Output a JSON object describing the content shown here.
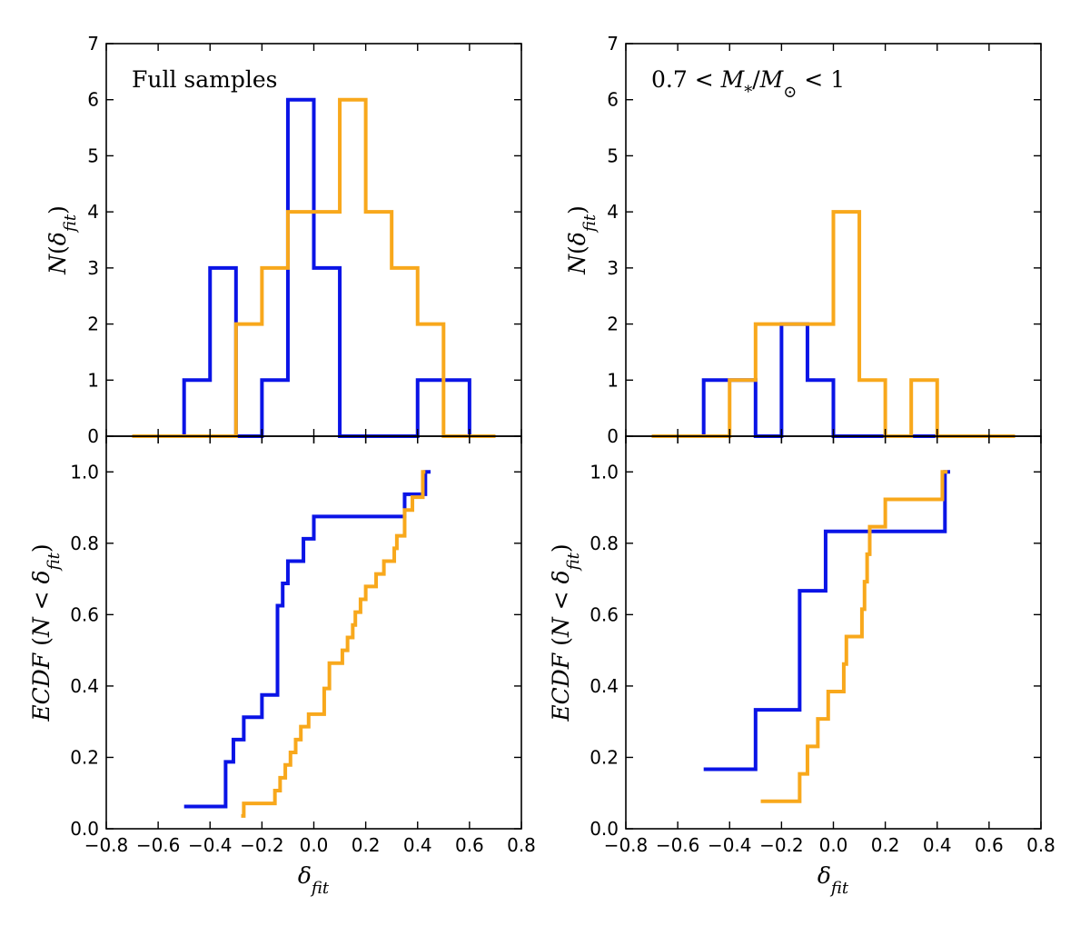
{
  "colors": {
    "blue": "#0a14e6",
    "orange": "#f8a81c",
    "axis": "#000000"
  },
  "chart_data": [
    {
      "id": "hist-full",
      "type": "histogram",
      "annotation": "Full samples",
      "ylabel": "N(δ_fit)",
      "xlim": [
        -0.8,
        0.8
      ],
      "ylim": [
        0,
        7
      ],
      "xticks": [
        -0.8,
        -0.6,
        -0.4,
        -0.2,
        0.0,
        0.2,
        0.4,
        0.6,
        0.8
      ],
      "yticks": [
        0,
        1,
        2,
        3,
        4,
        5,
        6,
        7
      ],
      "bin_edges": [
        -0.7,
        -0.6,
        -0.5,
        -0.4,
        -0.3,
        -0.2,
        -0.1,
        0.0,
        0.1,
        0.2,
        0.3,
        0.4,
        0.5,
        0.6,
        0.7
      ],
      "series": [
        {
          "name": "blue sample",
          "color_key": "blue",
          "counts": [
            0,
            0,
            1,
            3,
            0,
            1,
            6,
            3,
            0,
            0,
            0,
            1,
            1,
            0
          ]
        },
        {
          "name": "orange sample",
          "color_key": "orange",
          "counts": [
            0,
            0,
            0,
            0,
            2,
            3,
            4,
            4,
            6,
            4,
            3,
            2,
            0,
            0
          ]
        }
      ]
    },
    {
      "id": "hist-mass",
      "type": "histogram",
      "annotation": "0.7 < M_*/M_⊙ < 1",
      "ylabel": "N(δ_fit)",
      "xlim": [
        -0.8,
        0.8
      ],
      "ylim": [
        0,
        7
      ],
      "xticks": [
        -0.8,
        -0.6,
        -0.4,
        -0.2,
        0.0,
        0.2,
        0.4,
        0.6,
        0.8
      ],
      "yticks": [
        0,
        1,
        2,
        3,
        4,
        5,
        6,
        7
      ],
      "bin_edges": [
        -0.7,
        -0.6,
        -0.5,
        -0.4,
        -0.3,
        -0.2,
        -0.1,
        0.0,
        0.1,
        0.2,
        0.3,
        0.4,
        0.5,
        0.6,
        0.7
      ],
      "series": [
        {
          "name": "blue sample",
          "color_key": "blue",
          "counts": [
            0,
            0,
            1,
            1,
            0,
            2,
            1,
            0,
            0,
            0,
            0,
            0,
            0,
            0
          ]
        },
        {
          "name": "orange sample",
          "color_key": "orange",
          "counts": [
            0,
            0,
            0,
            1,
            2,
            2,
            2,
            4,
            1,
            0,
            1,
            0,
            0,
            0
          ]
        }
      ]
    },
    {
      "id": "ecdf-full",
      "type": "line",
      "ylabel": "ECDF(N < δ_fit)",
      "xlabel": "δ_fit",
      "xlim": [
        -0.8,
        0.8
      ],
      "ylim": [
        0,
        1.1
      ],
      "xticks": [
        -0.8,
        -0.6,
        -0.4,
        -0.2,
        0.0,
        0.2,
        0.4,
        0.6,
        0.8
      ],
      "xtick_labels": [
        "−0.8",
        "−0.6",
        "−0.4",
        "−0.2",
        "0.0",
        "0.2",
        "0.4",
        "0.6",
        "0.8"
      ],
      "yticks": [
        0.0,
        0.2,
        0.4,
        0.6,
        0.8,
        1.0
      ],
      "ytick_labels": [
        "0.0",
        "0.2",
        "0.4",
        "0.6",
        "0.8",
        "1.0"
      ],
      "series": [
        {
          "name": "blue sample",
          "color_key": "blue",
          "x_end": 0.45,
          "x": [
            -0.5,
            -0.34,
            -0.31,
            -0.27,
            -0.2,
            -0.14,
            -0.12,
            -0.1,
            -0.04,
            0.0,
            0.35,
            0.43
          ],
          "y": [
            0.0625,
            0.1875,
            0.25,
            0.3125,
            0.375,
            0.625,
            0.6875,
            0.75,
            0.8125,
            0.875,
            0.9375,
            1.0
          ]
        },
        {
          "name": "orange sample",
          "color_key": "orange",
          "x_end": 0.43,
          "x": [
            -0.28,
            -0.27,
            -0.15,
            -0.13,
            -0.11,
            -0.09,
            -0.07,
            -0.05,
            -0.02,
            0.04,
            0.06,
            0.11,
            0.13,
            0.15,
            0.16,
            0.18,
            0.2,
            0.24,
            0.27,
            0.31,
            0.32,
            0.35,
            0.38,
            0.42
          ],
          "y": [
            0.036,
            0.071,
            0.107,
            0.143,
            0.179,
            0.214,
            0.25,
            0.286,
            0.321,
            0.393,
            0.464,
            0.5,
            0.536,
            0.571,
            0.607,
            0.643,
            0.679,
            0.714,
            0.75,
            0.786,
            0.821,
            0.893,
            0.929,
            1.0
          ]
        }
      ]
    },
    {
      "id": "ecdf-mass",
      "type": "line",
      "ylabel": "ECDF(N < δ_fit)",
      "xlabel": "δ_fit",
      "xlim": [
        -0.8,
        0.8
      ],
      "ylim": [
        0,
        1.1
      ],
      "xticks": [
        -0.8,
        -0.6,
        -0.4,
        -0.2,
        0.0,
        0.2,
        0.4,
        0.6,
        0.8
      ],
      "xtick_labels": [
        "−0.8",
        "−0.6",
        "−0.4",
        "−0.2",
        "0.0",
        "0.2",
        "0.4",
        "0.6",
        "0.8"
      ],
      "yticks": [
        0.0,
        0.2,
        0.4,
        0.6,
        0.8,
        1.0
      ],
      "ytick_labels": [
        "0.0",
        "0.2",
        "0.4",
        "0.6",
        "0.8",
        "1.0"
      ],
      "series": [
        {
          "name": "blue sample",
          "color_key": "blue",
          "x_end": 0.45,
          "x": [
            -0.5,
            -0.3,
            -0.13,
            -0.03,
            0.43
          ],
          "y": [
            0.1667,
            0.3333,
            0.6667,
            0.8333,
            1.0
          ]
        },
        {
          "name": "orange sample",
          "color_key": "orange",
          "x_end": 0.44,
          "x": [
            -0.28,
            -0.13,
            -0.1,
            -0.06,
            -0.02,
            0.04,
            0.05,
            0.11,
            0.12,
            0.13,
            0.14,
            0.16,
            0.2,
            0.42
          ],
          "y": [
            0.0769,
            0.1538,
            0.2308,
            0.3077,
            0.3846,
            0.4615,
            0.5385,
            0.6154,
            0.6923,
            0.7692,
            0.8462,
            0.8462,
            0.9231,
            1.0
          ]
        }
      ]
    }
  ]
}
